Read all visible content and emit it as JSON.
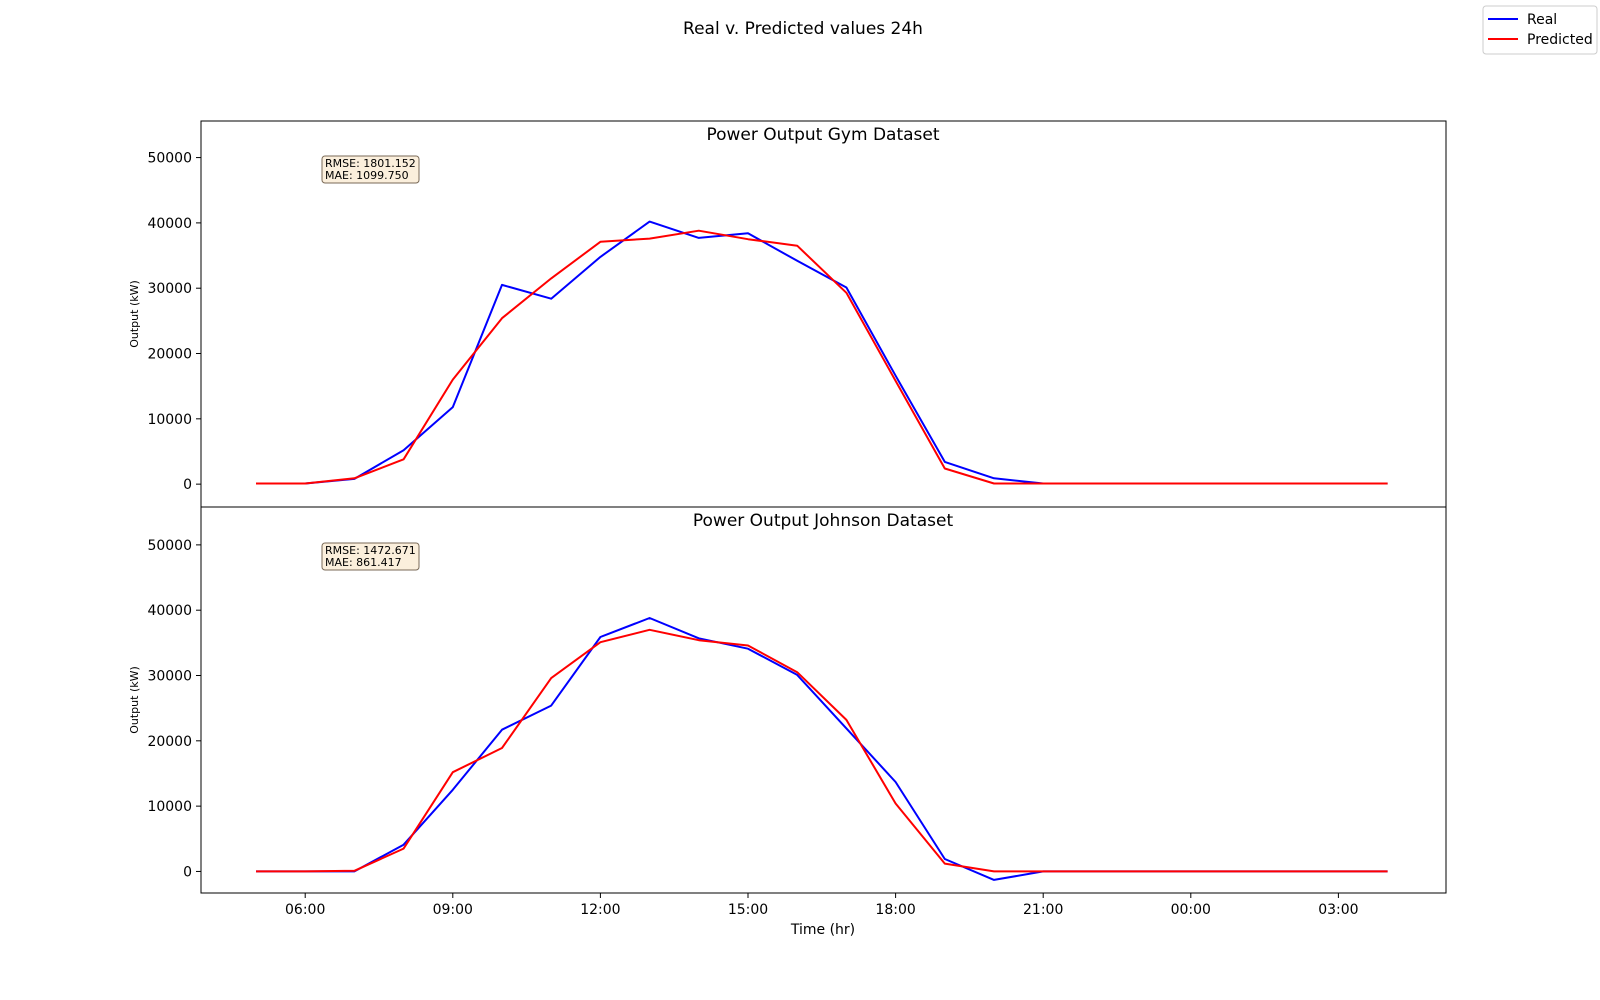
{
  "figure": {
    "title": "Real v. Predicted values 24h",
    "legend": {
      "placement": "top-right",
      "items": [
        {
          "label": "Real",
          "color": "#0000ff"
        },
        {
          "label": "Predicted",
          "color": "#ff0000"
        }
      ]
    }
  },
  "chart_data": [
    {
      "type": "line",
      "title": "Power Output Gym Dataset",
      "xlabel": "",
      "ylabel": "Output (kW)",
      "x": [
        "05:00",
        "06:00",
        "07:00",
        "08:00",
        "09:00",
        "10:00",
        "11:00",
        "12:00",
        "13:00",
        "14:00",
        "15:00",
        "16:00",
        "17:00",
        "18:00",
        "19:00",
        "20:00",
        "21:00",
        "22:00",
        "23:00",
        "00:00",
        "01:00",
        "02:00",
        "03:00",
        "04:00"
      ],
      "series": [
        {
          "name": "Real",
          "color": "#0000ff",
          "values": [
            100,
            100,
            800,
            5200,
            11800,
            30500,
            28400,
            34800,
            40200,
            37700,
            38400,
            34200,
            30100,
            16600,
            3400,
            900,
            100,
            100,
            100,
            100,
            100,
            100,
            100,
            100
          ]
        },
        {
          "name": "Predicted",
          "color": "#ff0000",
          "values": [
            100,
            100,
            900,
            3800,
            16000,
            25400,
            31500,
            37100,
            37600,
            38800,
            37500,
            36500,
            29300,
            15800,
            2400,
            100,
            100,
            100,
            100,
            100,
            100,
            100,
            100,
            100
          ]
        }
      ],
      "yticks": [
        "0",
        "10000",
        "20000",
        "30000",
        "40000",
        "50000"
      ],
      "ylim": [
        -3500,
        55600
      ],
      "annotation": {
        "lines": [
          "RMSE: 1801.152",
          "MAE: 1099.750"
        ]
      },
      "grid": false
    },
    {
      "type": "line",
      "title": "Power Output Johnson Dataset",
      "xlabel": "Time (hr)",
      "ylabel": "Output (kW)",
      "x": [
        "05:00",
        "06:00",
        "07:00",
        "08:00",
        "09:00",
        "10:00",
        "11:00",
        "12:00",
        "13:00",
        "14:00",
        "15:00",
        "16:00",
        "17:00",
        "18:00",
        "19:00",
        "20:00",
        "21:00",
        "22:00",
        "23:00",
        "00:00",
        "01:00",
        "02:00",
        "03:00",
        "04:00"
      ],
      "xticks": [
        "06:00",
        "09:00",
        "12:00",
        "15:00",
        "18:00",
        "21:00",
        "00:00",
        "03:00"
      ],
      "series": [
        {
          "name": "Real",
          "color": "#0000ff",
          "values": [
            0,
            0,
            0,
            4100,
            12500,
            21700,
            25400,
            35900,
            38800,
            35700,
            34100,
            30100,
            21900,
            13700,
            1900,
            -1300,
            0,
            0,
            0,
            0,
            0,
            0,
            0,
            0
          ]
        },
        {
          "name": "Predicted",
          "color": "#ff0000",
          "values": [
            0,
            0,
            100,
            3500,
            15200,
            18900,
            29600,
            35100,
            37000,
            35400,
            34600,
            30500,
            23200,
            10400,
            1200,
            0,
            0,
            0,
            0,
            0,
            0,
            0,
            0,
            0
          ]
        }
      ],
      "yticks": [
        "0",
        "10000",
        "20000",
        "30000",
        "40000",
        "50000"
      ],
      "ylim": [
        -3300,
        55800
      ],
      "annotation": {
        "lines": [
          "RMSE: 1472.671",
          "MAE: 861.417"
        ]
      },
      "grid": false
    }
  ]
}
